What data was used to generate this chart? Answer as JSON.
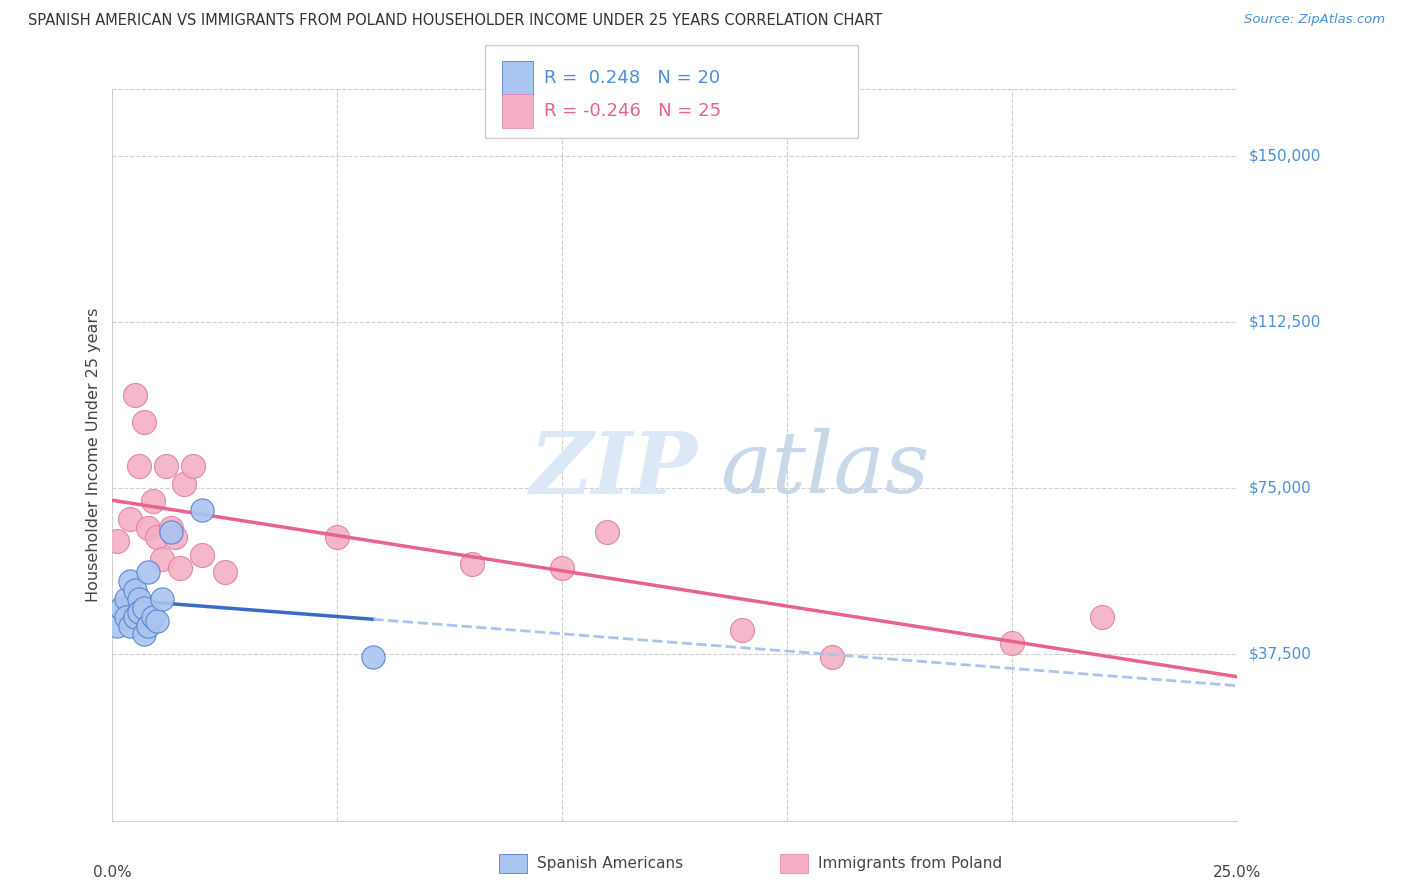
{
  "title": "SPANISH AMERICAN VS IMMIGRANTS FROM POLAND HOUSEHOLDER INCOME UNDER 25 YEARS CORRELATION CHART",
  "source": "Source: ZipAtlas.com",
  "ylabel": "Householder Income Under 25 years",
  "yticks": [
    37500,
    75000,
    112500,
    150000
  ],
  "ytick_labels": [
    "$37,500",
    "$75,000",
    "$112,500",
    "$150,000"
  ],
  "xtick_labels": [
    "0.0%",
    "25.0%"
  ],
  "xlim": [
    0.0,
    0.25
  ],
  "ylim": [
    0,
    165000
  ],
  "legend1_R": "0.248",
  "legend1_N": "20",
  "legend2_R": "-0.246",
  "legend2_N": "25",
  "watermark_zip": "ZIP",
  "watermark_atlas": "atlas",
  "blue_line_color": "#3a6bc4",
  "blue_dot_color": "#aac4f0",
  "blue_dot_edge": "#5580cc",
  "pink_line_color": "#e8638a",
  "pink_dot_color": "#f4afc5",
  "pink_dot_edge": "#e0809f",
  "right_label_color": "#4a90d9",
  "grid_color": "#d0d0d0",
  "spanish_x": [
    0.001,
    0.002,
    0.003,
    0.003,
    0.004,
    0.004,
    0.005,
    0.005,
    0.006,
    0.006,
    0.007,
    0.007,
    0.008,
    0.008,
    0.009,
    0.01,
    0.011,
    0.013,
    0.02,
    0.058
  ],
  "spanish_y": [
    44000,
    48000,
    50000,
    46000,
    54000,
    44000,
    52000,
    46000,
    50000,
    47000,
    48000,
    42000,
    56000,
    44000,
    46000,
    45000,
    50000,
    65000,
    70000,
    37000
  ],
  "poland_x": [
    0.001,
    0.004,
    0.005,
    0.006,
    0.007,
    0.008,
    0.009,
    0.01,
    0.011,
    0.012,
    0.013,
    0.014,
    0.015,
    0.016,
    0.018,
    0.02,
    0.025,
    0.05,
    0.08,
    0.1,
    0.11,
    0.14,
    0.16,
    0.2,
    0.22
  ],
  "poland_y": [
    63000,
    68000,
    96000,
    80000,
    90000,
    66000,
    72000,
    64000,
    59000,
    80000,
    66000,
    64000,
    57000,
    76000,
    80000,
    60000,
    56000,
    64000,
    58000,
    57000,
    65000,
    43000,
    37000,
    40000,
    46000
  ]
}
